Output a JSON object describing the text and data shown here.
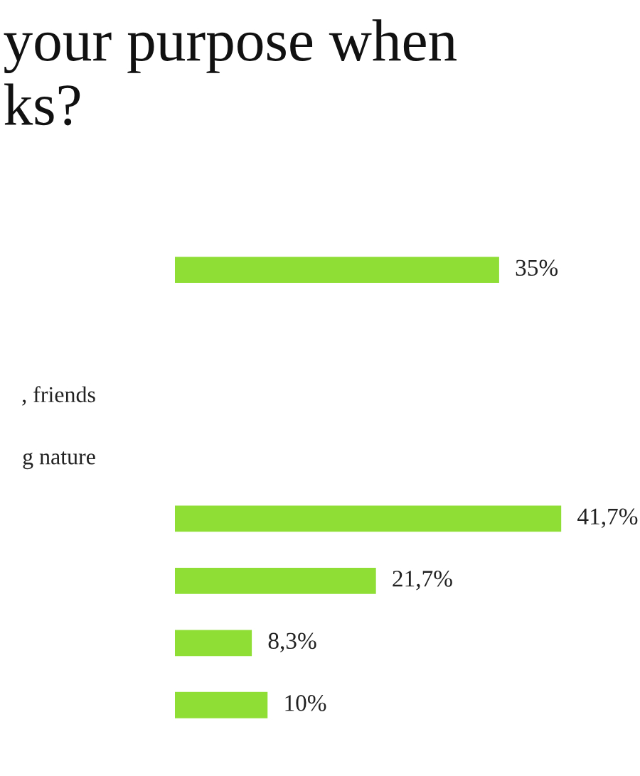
{
  "chart_data": {
    "type": "bar",
    "orientation": "horizontal",
    "title": "your purpose when\nks?",
    "categories": [
      null,
      null,
      ", friends",
      "g nature",
      null,
      null,
      null,
      null
    ],
    "values": [
      35,
      null,
      null,
      null,
      41.7,
      21.7,
      8.3,
      10
    ],
    "value_labels": [
      "35%",
      null,
      null,
      null,
      "41,7%",
      "21,7%",
      "8,3%",
      "10%"
    ],
    "color": "#8ede36",
    "tick_labels": "y",
    "grid": false,
    "legend": false
  }
}
